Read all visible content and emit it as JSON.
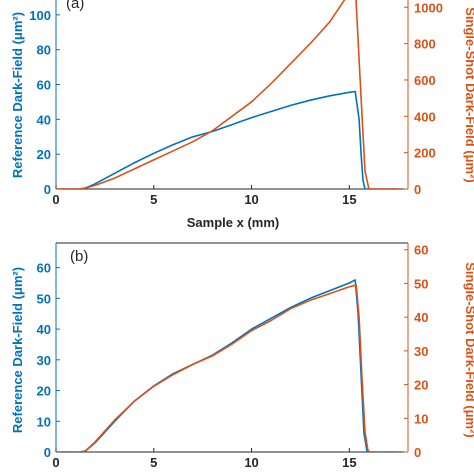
{
  "colors": {
    "left_axis": "#0072BD",
    "right_axis": "#D95319",
    "frame": "#262626"
  },
  "chart_data": [
    {
      "type": "line",
      "panel_label": "(a)",
      "xlabel": "Sample x (mm)",
      "ylabel": "Reference Dark-Field (μm²)",
      "ylabel_right": "Single-Shot Dark-Field (μm²)",
      "xlim": [
        0,
        18
      ],
      "ylim": [
        0,
        120
      ],
      "ylim_right": [
        0,
        1150
      ],
      "xticks": [
        0,
        5,
        10,
        15
      ],
      "yticks": [
        0,
        20,
        40,
        60,
        80,
        100,
        120
      ],
      "yticks_right": [
        0,
        200,
        400,
        600,
        800,
        1000
      ],
      "grid": false,
      "series": [
        {
          "axis": "left",
          "color": "#0072BD",
          "x": [
            0,
            1.2,
            1.5,
            2,
            3,
            4,
            5,
            6,
            7,
            8,
            9,
            10,
            11,
            12,
            13,
            14,
            15,
            15.3,
            15.5,
            15.6,
            15.7,
            15.8,
            16.0,
            17.5
          ],
          "values": [
            0,
            0,
            0.5,
            3,
            9,
            15,
            20.5,
            25.5,
            30,
            33,
            37,
            41,
            44.5,
            48,
            51,
            53.5,
            55.5,
            56,
            40,
            20,
            5,
            0,
            0,
            0
          ]
        },
        {
          "axis": "right",
          "color": "#D95319",
          "x": [
            0,
            1.2,
            1.5,
            2,
            3,
            4,
            5,
            6,
            7,
            8,
            9,
            10,
            11,
            12,
            13,
            14,
            15,
            15.15,
            15.3,
            15.35,
            15.6,
            15.8,
            16.0,
            17.5
          ],
          "values": [
            0,
            0,
            5,
            20,
            60,
            110,
            160,
            210,
            260,
            320,
            400,
            480,
            580,
            690,
            800,
            920,
            1080,
            1150,
            1150,
            1020,
            500,
            100,
            0,
            0
          ]
        }
      ]
    },
    {
      "type": "line",
      "panel_label": "(b)",
      "xlabel": "",
      "ylabel": "Reference Dark-Field (μm²)",
      "ylabel_right": "Single-Shot Dark-Field (μm²)",
      "xlim": [
        0,
        18
      ],
      "ylim": [
        0,
        68
      ],
      "ylim_right": [
        0,
        62
      ],
      "xticks": [
        0,
        5,
        10,
        15
      ],
      "yticks": [
        0,
        10,
        20,
        30,
        40,
        50,
        60
      ],
      "yticks_right": [
        0,
        10,
        20,
        30,
        40,
        50,
        60
      ],
      "grid": false,
      "series": [
        {
          "axis": "left",
          "color": "#0072BD",
          "x": [
            0,
            1.2,
            1.5,
            2,
            3,
            4,
            5,
            6,
            7,
            8,
            9,
            10,
            11,
            12,
            13,
            14,
            15,
            15.3,
            15.45,
            15.6,
            15.75,
            15.9,
            16.0,
            17.5
          ],
          "values": [
            0,
            0,
            0.3,
            3,
            10,
            16.5,
            21.5,
            25.5,
            28.5,
            31.5,
            35.5,
            40,
            43.5,
            47,
            50,
            52.5,
            55,
            56,
            45,
            25,
            6,
            0.5,
            0,
            0
          ]
        },
        {
          "axis": "right",
          "color": "#D95319",
          "x": [
            0,
            1.2,
            1.5,
            2,
            3,
            4,
            5,
            6,
            7,
            8,
            9,
            10,
            11,
            12,
            13,
            14,
            15,
            15.35,
            15.5,
            15.65,
            15.8,
            15.95,
            16.05,
            17.5
          ],
          "values": [
            0,
            0,
            0.3,
            3,
            9.5,
            15,
            19.5,
            23,
            26,
            28.5,
            32,
            36,
            39,
            42.5,
            45,
            47,
            49,
            49.5,
            40,
            22,
            6,
            0.5,
            0,
            0
          ]
        }
      ]
    }
  ]
}
